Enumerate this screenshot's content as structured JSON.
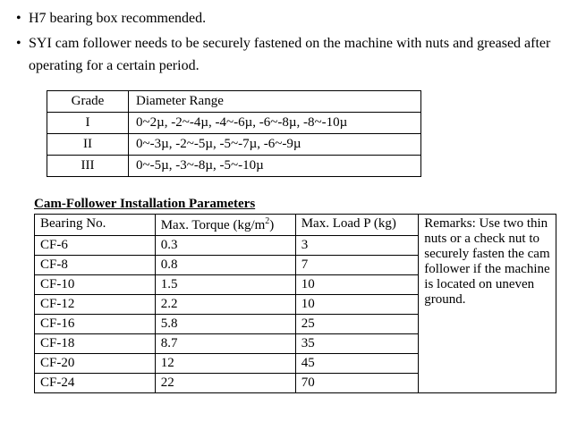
{
  "bullets": [
    "H7 bearing box recommended.",
    "SYI cam follower needs to be securely fastened on the machine with nuts and greased after operating for a certain period."
  ],
  "gradeTable": {
    "headers": {
      "grade": "Grade",
      "range": "Diameter Range"
    },
    "rows": [
      {
        "grade": "I",
        "range": "0~2µ, -2~-4µ, -4~-6µ, -6~-8µ, -8~-10µ"
      },
      {
        "grade": "II",
        "range": "0~-3µ, -2~-5µ, -5~-7µ, -6~-9µ"
      },
      {
        "grade": "III",
        "range": "0~-5µ, -3~-8µ, -5~-10µ"
      }
    ]
  },
  "paramTable": {
    "title": "Cam-Follower Installation Parameters",
    "headers": {
      "bearingNo": "Bearing No.",
      "maxTorquePrefix": "Max. Torque (kg/m",
      "maxTorqueSuffix": ")",
      "maxLoad": "Max. Load P (kg)",
      "remarks": "Remarks: Use two thin nuts or a check nut to securely fasten the cam follower if the machine is located on uneven ground."
    },
    "rows": [
      {
        "bn": "CF-6",
        "mt": "0.3",
        "ml": "3"
      },
      {
        "bn": "CF-8",
        "mt": "0.8",
        "ml": "7"
      },
      {
        "bn": "CF-10",
        "mt": "1.5",
        "ml": "10"
      },
      {
        "bn": "CF-12",
        "mt": "2.2",
        "ml": "10"
      },
      {
        "bn": "CF-16",
        "mt": "5.8",
        "ml": "25"
      },
      {
        "bn": "CF-18",
        "mt": "8.7",
        "ml": "35"
      },
      {
        "bn": "CF-20",
        "mt": "12",
        "ml": "45"
      },
      {
        "bn": "CF-24",
        "mt": "22",
        "ml": "70"
      }
    ]
  }
}
